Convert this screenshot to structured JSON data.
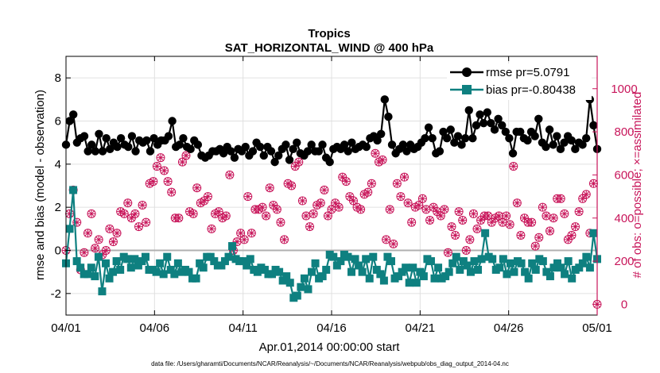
{
  "chart_data": {
    "type": "line",
    "title": "Tropics",
    "subtitle": "SAT_HORIZONTAL_WIND @ 400 hPa",
    "xlabel": "Apr.01,2014 00:00:00 start",
    "ylabel": "rmse and bias (model - observation)",
    "y2label": "# of obs: o=possible; ×=assimilated",
    "footnote": "data file: /Users/gharamti/Documents/NCAR/Reanalysis/~/Documents/NCAR/Reanalysis/webpub/obs_diag_output_2014-04.nc",
    "xlim": [
      0,
      30
    ],
    "ylim": [
      -3,
      9
    ],
    "y2lim": [
      -50,
      1150
    ],
    "x_ticks": [
      0,
      5,
      10,
      15,
      20,
      25,
      30
    ],
    "x_tick_labels": [
      "04/01",
      "04/06",
      "04/11",
      "04/16",
      "04/21",
      "04/26",
      "05/01"
    ],
    "y_ticks": [
      -2,
      0,
      2,
      4,
      6,
      8
    ],
    "y_tick_labels": [
      "-2",
      "0",
      "2",
      "4",
      "6",
      "8"
    ],
    "y2_ticks": [
      0,
      200,
      400,
      600,
      800,
      1000
    ],
    "y2_tick_labels": [
      "0",
      "200",
      "400",
      "600",
      "800",
      "1000"
    ],
    "grid": true,
    "legend_position": "top-right",
    "colors": {
      "rmse": "#000000",
      "bias": "#0e8080",
      "obs": "#c8155a",
      "zero": "#b0b0b0",
      "grid": "#e0e0e0"
    },
    "series": [
      {
        "name": "rmse pr=5.0791",
        "marker": "circle",
        "values": [
          4.9,
          6.0,
          6.3,
          5.0,
          5.2,
          5.3,
          4.6,
          4.9,
          4.6,
          5.4,
          4.6,
          5.2,
          4.7,
          5.0,
          4.8,
          5.2,
          4.9,
          4.8,
          5.3,
          4.6,
          5.1,
          5.0,
          5.1,
          4.6,
          5.2,
          4.9,
          5.1,
          5.1,
          5.3,
          6.0,
          4.8,
          4.9,
          5.2,
          4.8,
          4.7,
          5.1,
          4.9,
          4.4,
          4.3,
          4.4,
          4.6,
          4.6,
          4.7,
          4.5,
          4.8,
          4.6,
          4.3,
          4.7,
          4.6,
          4.8,
          4.4,
          4.6,
          5.0,
          4.8,
          4.4,
          4.8,
          4.6,
          4.1,
          4.4,
          4.7,
          4.9,
          4.2,
          4.7,
          5.0,
          4.5,
          4.4,
          4.6,
          4.9,
          4.6,
          4.6,
          4.9,
          4.3,
          4.1,
          4.7,
          4.8,
          4.7,
          4.9,
          4.6,
          5.0,
          4.7,
          4.8,
          4.9,
          4.8,
          5.2,
          5.3,
          5.1,
          5.4,
          7.0,
          6.2,
          4.9,
          4.5,
          4.7,
          4.9,
          4.6,
          4.9,
          4.7,
          4.8,
          5.0,
          5.2,
          5.7,
          5.2,
          4.5,
          4.6,
          5.5,
          5.2,
          5.6,
          5.0,
          5.3,
          4.9,
          5.2,
          6.5,
          5.2,
          5.8,
          6.3,
          5.9,
          6.4,
          5.9,
          5.6,
          6.1,
          5.8,
          5.5,
          5.2,
          4.5,
          5.5,
          5.5,
          5.2,
          5.1,
          5.5,
          5.3,
          6.1,
          5.0,
          4.8,
          5.6,
          4.9,
          5.3,
          4.7,
          5.0,
          5.3,
          5.1,
          4.7,
          5.0,
          4.9,
          5.2,
          7.0,
          5.8,
          4.7
        ]
      },
      {
        "name": "bias pr=-0.80438",
        "marker": "square",
        "values": [
          -0.6,
          1.0,
          2.8,
          -0.5,
          -0.8,
          -1.1,
          -1.1,
          -0.8,
          -1.2,
          -0.3,
          -1.9,
          -0.6,
          -1.3,
          -1.0,
          -0.5,
          -0.9,
          -0.3,
          -0.4,
          -0.8,
          -0.4,
          -0.7,
          -0.5,
          -0.3,
          -0.9,
          -0.9,
          -1.0,
          -0.6,
          -1.1,
          -0.3,
          -0.9,
          -1.1,
          -0.6,
          -1.0,
          -0.9,
          -1.0,
          -1.3,
          -1.3,
          -0.6,
          -0.8,
          -0.3,
          -0.3,
          -0.5,
          -0.7,
          -0.7,
          -0.5,
          -0.3,
          0.2,
          -0.4,
          -0.5,
          -0.5,
          -0.7,
          -0.4,
          -0.9,
          -1.0,
          -0.8,
          -0.9,
          -1.1,
          -1.1,
          -0.9,
          -1.0,
          -1.4,
          -1.2,
          -1.5,
          -2.2,
          -2.1,
          -1.7,
          -1.3,
          -1.8,
          -1.0,
          -0.6,
          -1.3,
          -1.2,
          -0.9,
          -0.2,
          -0.3,
          -0.7,
          -0.5,
          -0.2,
          -0.3,
          -1.0,
          -0.4,
          -0.7,
          -1.0,
          -0.4,
          -1.3,
          -0.3,
          -0.9,
          -1.1,
          -1.4,
          -0.3,
          -0.5,
          -1.3,
          -1.2,
          -1.0,
          -0.8,
          -1.5,
          -0.8,
          -1.5,
          -1.0,
          -1.2,
          -0.4,
          -0.5,
          -1.3,
          -0.8,
          -1.3,
          -1.2,
          -1.0,
          -0.6,
          -0.3,
          -0.9,
          -0.5,
          -0.7,
          -1.0,
          -0.5,
          -0.9,
          -0.4,
          0.8,
          -0.3,
          -0.4,
          -0.9,
          -0.8,
          -0.4,
          -1.1,
          -0.6,
          -1.0,
          -0.5,
          -0.6,
          -1.0,
          -1.3,
          -0.6,
          -0.9,
          -0.4,
          -0.5,
          -1.0,
          -1.2,
          -0.8,
          -0.6,
          -0.8,
          -1.1,
          -0.5,
          -1.3,
          -0.9,
          -0.8,
          -0.6,
          -0.3,
          -0.8,
          0.8,
          -0.4
        ]
      },
      {
        "name": "# of obs (possible / assimilated)",
        "axis": "right",
        "marker": "circle-star",
        "values": [
          250,
          420,
          530,
          380,
          160,
          240,
          330,
          420,
          260,
          300,
          230,
          250,
          350,
          290,
          330,
          430,
          420,
          470,
          400,
          420,
          360,
          460,
          380,
          560,
          570,
          640,
          680,
          620,
          570,
          520,
          400,
          400,
          660,
          690,
          430,
          420,
          540,
          470,
          480,
          500,
          350,
          420,
          430,
          400,
          410,
          600,
          250,
          290,
          330,
          300,
          500,
          330,
          440,
          440,
          450,
          410,
          540,
          460,
          440,
          380,
          300,
          560,
          550,
          640,
          660,
          480,
          410,
          360,
          420,
          460,
          470,
          530,
          410,
          440,
          470,
          450,
          590,
          570,
          500,
          480,
          450,
          440,
          510,
          520,
          560,
          700,
          660,
          670,
          300,
          440,
          280,
          560,
          500,
          590,
          470,
          380,
          450,
          460,
          490,
          440,
          390,
          450,
          430,
          410,
          440,
          240,
          360,
          320,
          430,
          390,
          250,
          300,
          420,
          350,
          390,
          410,
          410,
          380,
          400,
          410,
          380,
          410,
          370,
          640,
          470,
          320,
          400,
          380,
          380,
          270,
          310,
          450,
          410,
          340,
          400,
          490,
          490,
          420,
          300,
          320,
          360,
          430,
          490,
          510,
          330,
          560,
          0
        ]
      }
    ]
  }
}
